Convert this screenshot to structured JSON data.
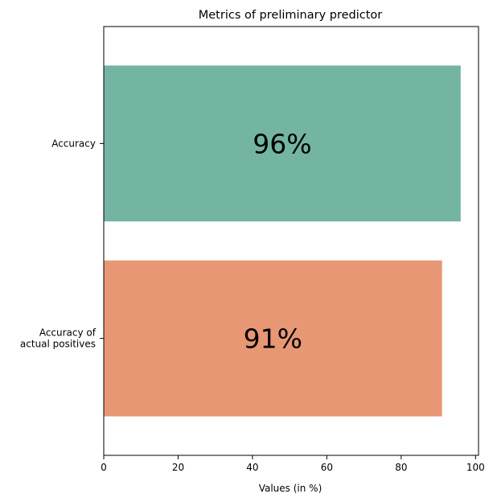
{
  "chart_data": {
    "type": "bar",
    "orientation": "horizontal",
    "title": "Metrics of preliminary predictor",
    "xlabel": "Values (in %)",
    "ylabel": "",
    "xlim": [
      0,
      100.8
    ],
    "xticks": [
      0,
      20,
      40,
      60,
      80,
      100
    ],
    "categories": [
      [
        "Accuracy"
      ],
      [
        "Accuracy of",
        "actual positives"
      ]
    ],
    "values": [
      96,
      91
    ],
    "bar_labels": [
      "96%",
      "91%"
    ],
    "colors": [
      "#73b5a2",
      "#e89775"
    ],
    "grid": false,
    "legend": "none"
  }
}
